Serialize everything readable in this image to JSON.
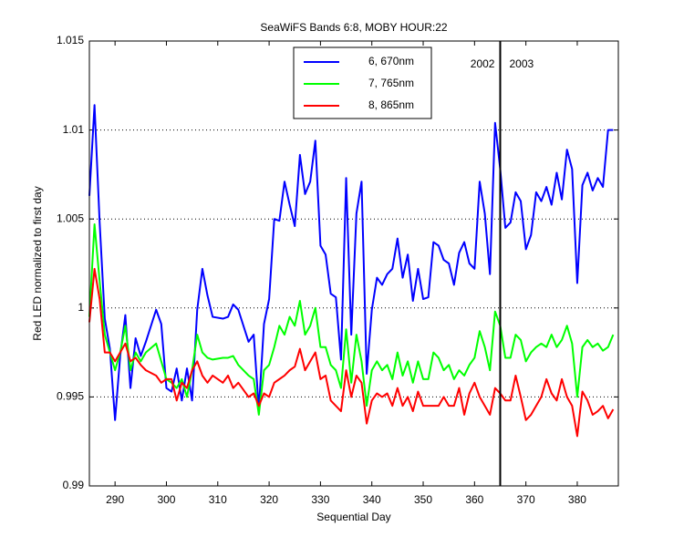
{
  "chart_data": {
    "type": "line",
    "title": "SeaWiFS Bands 6:8, MOBY HOUR:22",
    "x_label": "Sequential Day",
    "y_label": "Red LED normalized to first day",
    "x": [
      285,
      286,
      287,
      288,
      289,
      290,
      291,
      292,
      293,
      294,
      295,
      296,
      298,
      299,
      300,
      301,
      302,
      303,
      304,
      305,
      306,
      307,
      308,
      309,
      311,
      312,
      313,
      314,
      316,
      317,
      318,
      319,
      320,
      321,
      322,
      323,
      324,
      325,
      326,
      327,
      328,
      329,
      330,
      331,
      332,
      333,
      334,
      335,
      336,
      337,
      338,
      339,
      340,
      341,
      342,
      343,
      344,
      345,
      346,
      347,
      348,
      349,
      350,
      351,
      352,
      353,
      354,
      355,
      356,
      357,
      358,
      359,
      360,
      361,
      362,
      363,
      364,
      365,
      366,
      367,
      368,
      369,
      370,
      371,
      372,
      373,
      374,
      375,
      376,
      377,
      378,
      379,
      380,
      381,
      382,
      383,
      384,
      385,
      386,
      387
    ],
    "series": [
      {
        "name": "6, 670nm",
        "color": "#0000ff",
        "values": [
          1.0063,
          1.0114,
          1.0048,
          0.9994,
          0.9977,
          0.9937,
          0.9973,
          0.9996,
          0.9955,
          0.9983,
          0.9973,
          0.9981,
          0.9999,
          0.9991,
          0.9955,
          0.9953,
          0.9966,
          0.9948,
          0.9966,
          0.9948,
          0.9999,
          1.0022,
          1.0007,
          0.9995,
          0.9994,
          0.9995,
          1.0002,
          0.9999,
          0.9981,
          0.9985,
          0.9943,
          0.9991,
          1.0005,
          1.005,
          1.0049,
          1.0071,
          1.0058,
          1.0046,
          1.0086,
          1.0064,
          1.0071,
          1.0094,
          1.0035,
          1.003,
          1.0008,
          1.0006,
          0.9971,
          1.0073,
          0.9985,
          1.0053,
          1.0071,
          0.9963,
          0.9999,
          1.0017,
          1.0013,
          1.0019,
          1.0022,
          1.0039,
          1.0017,
          1.003,
          1.0004,
          1.0022,
          1.0005,
          1.0006,
          1.0037,
          1.0035,
          1.0027,
          1.0025,
          1.0013,
          1.0031,
          1.0037,
          1.0025,
          1.0022,
          1.0071,
          1.0053,
          1.0019,
          1.0104,
          1.0078,
          1.0045,
          1.0048,
          1.0065,
          1.006,
          1.0033,
          1.0041,
          1.0065,
          1.006,
          1.0068,
          1.0058,
          1.0076,
          1.0061,
          1.0089,
          1.0078,
          1.0014,
          1.0069,
          1.0076,
          1.0066,
          1.0073,
          1.0068,
          1.01,
          1.01
        ]
      },
      {
        "name": "7, 765nm",
        "color": "#00ff00",
        "values": [
          0.9995,
          1.0047,
          1.0015,
          0.9985,
          0.9975,
          0.9965,
          0.9975,
          0.999,
          0.9965,
          0.9975,
          0.997,
          0.9975,
          0.998,
          0.997,
          0.996,
          0.9958,
          0.9955,
          0.996,
          0.995,
          0.9965,
          0.9985,
          0.9975,
          0.9972,
          0.9971,
          0.9972,
          0.9972,
          0.9973,
          0.9968,
          0.9962,
          0.996,
          0.994,
          0.9965,
          0.9968,
          0.9978,
          0.999,
          0.9985,
          0.9995,
          0.999,
          1.0004,
          0.9985,
          0.999,
          1.0,
          0.9978,
          0.9978,
          0.9968,
          0.9965,
          0.9955,
          0.9988,
          0.9958,
          0.9985,
          0.997,
          0.9945,
          0.9965,
          0.997,
          0.9965,
          0.9968,
          0.996,
          0.9975,
          0.9962,
          0.997,
          0.9958,
          0.997,
          0.996,
          0.996,
          0.9975,
          0.9972,
          0.9965,
          0.9968,
          0.996,
          0.9965,
          0.9962,
          0.9968,
          0.9972,
          0.9987,
          0.9978,
          0.9965,
          0.9998,
          0.999,
          0.9972,
          0.9972,
          0.9985,
          0.9982,
          0.997,
          0.9975,
          0.9978,
          0.998,
          0.9978,
          0.9985,
          0.9978,
          0.9982,
          0.999,
          0.998,
          0.995,
          0.9978,
          0.9982,
          0.9978,
          0.998,
          0.9976,
          0.9978,
          0.9985
        ]
      },
      {
        "name": "8, 865nm",
        "color": "#ff0000",
        "values": [
          0.9992,
          1.0022,
          1.0005,
          0.9975,
          0.9975,
          0.997,
          0.9975,
          0.998,
          0.997,
          0.9972,
          0.9968,
          0.9965,
          0.9962,
          0.9958,
          0.996,
          0.996,
          0.9948,
          0.9958,
          0.9955,
          0.9965,
          0.997,
          0.9962,
          0.9958,
          0.9962,
          0.9958,
          0.9962,
          0.9955,
          0.9958,
          0.995,
          0.9952,
          0.9945,
          0.9952,
          0.995,
          0.9958,
          0.996,
          0.9962,
          0.9965,
          0.9967,
          0.9977,
          0.9965,
          0.997,
          0.9975,
          0.996,
          0.9962,
          0.9948,
          0.9945,
          0.9942,
          0.9965,
          0.995,
          0.9962,
          0.9958,
          0.9935,
          0.9948,
          0.9952,
          0.995,
          0.9952,
          0.9945,
          0.9955,
          0.9945,
          0.995,
          0.9942,
          0.9953,
          0.9945,
          0.9945,
          0.9945,
          0.9945,
          0.995,
          0.9945,
          0.9945,
          0.9955,
          0.994,
          0.9952,
          0.9958,
          0.995,
          0.9945,
          0.994,
          0.9955,
          0.9952,
          0.9948,
          0.9948,
          0.9962,
          0.995,
          0.9937,
          0.994,
          0.9945,
          0.995,
          0.996,
          0.9952,
          0.9948,
          0.996,
          0.995,
          0.9945,
          0.9928,
          0.9953,
          0.9948,
          0.994,
          0.9942,
          0.9945,
          0.9938,
          0.9943
        ]
      }
    ],
    "xlim": [
      285,
      388
    ],
    "xticks": [
      290,
      300,
      310,
      320,
      330,
      340,
      350,
      360,
      370,
      380
    ],
    "ylim": [
      0.99,
      1.015
    ],
    "yticks": [
      0.99,
      0.995,
      1,
      1.005,
      1.01,
      1.015
    ],
    "grid": true,
    "legend": "north",
    "vlines": [
      365
    ],
    "annotations": [
      "2002",
      "2003"
    ]
  }
}
